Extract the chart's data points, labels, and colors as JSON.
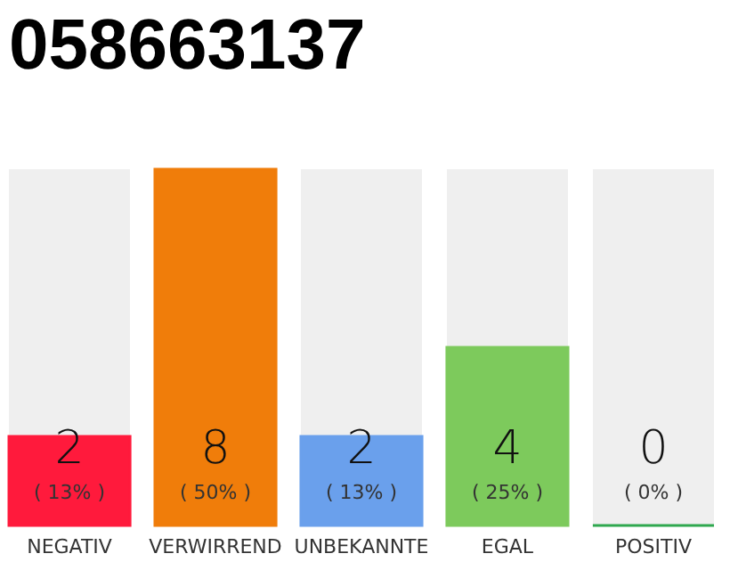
{
  "chart_data": {
    "type": "bar",
    "title": "058663137",
    "categories": [
      "NEGATIV",
      "VERWIRREND",
      "UNBEKANNTE",
      "EGAL",
      "POSITIV"
    ],
    "values": [
      2,
      8,
      2,
      4,
      0
    ],
    "colors": [
      "#ff1a3c",
      "#f07d0a",
      "#6aa0ec",
      "#7dca5c",
      "#2fa84f"
    ],
    "data_labels": true,
    "annotations": [
      "( 13% )",
      "( 50% )",
      "( 13% )",
      "( 25% )",
      "( 0% )"
    ]
  }
}
